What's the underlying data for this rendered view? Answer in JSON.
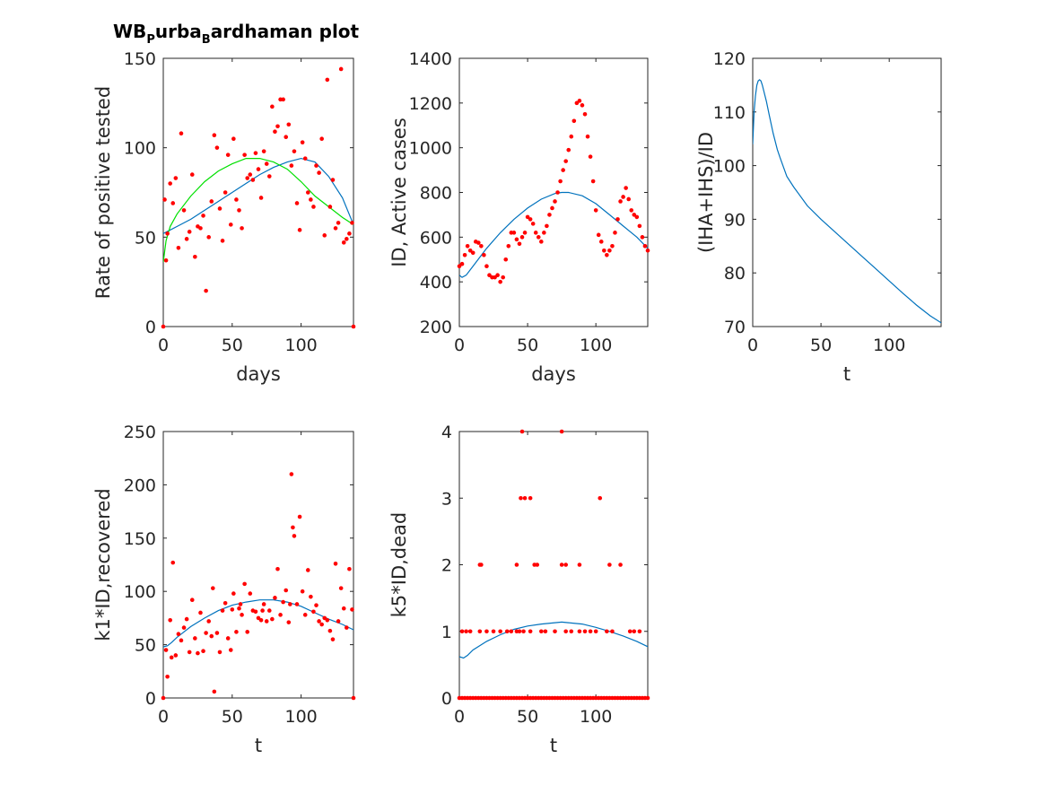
{
  "figure": {
    "title_main": "WB",
    "title_sub1": "P",
    "title_mid": "urba",
    "title_sub2": "B",
    "title_end": "ardhaman plot"
  },
  "colors": {
    "data": "#ff0000",
    "fit": "#0072bd",
    "fit2": "#00e000",
    "axes": "#262626"
  },
  "chart_data": [
    {
      "type": "scatter",
      "xlabel": "days",
      "ylabel": "Rate of positive tested",
      "xlim": [
        0,
        138
      ],
      "ylim": [
        0,
        150
      ],
      "xticks": [
        0,
        50,
        100
      ],
      "yticks": [
        0,
        50,
        100,
        150
      ],
      "x": [
        0,
        1,
        2,
        3,
        5,
        7,
        9,
        11,
        13,
        15,
        17,
        19,
        21,
        23,
        25,
        27,
        29,
        31,
        33,
        35,
        37,
        39,
        41,
        43,
        45,
        47,
        49,
        51,
        53,
        55,
        57,
        59,
        61,
        63,
        65,
        67,
        69,
        71,
        73,
        75,
        77,
        79,
        81,
        83,
        85,
        87,
        89,
        91,
        93,
        95,
        97,
        99,
        101,
        103,
        105,
        107,
        109,
        111,
        113,
        115,
        117,
        119,
        121,
        123,
        125,
        127,
        129,
        131,
        133,
        135,
        137,
        138
      ],
      "y": [
        0,
        71,
        37,
        52,
        80,
        69,
        83,
        44,
        108,
        65,
        49,
        53,
        85,
        39,
        56,
        55,
        62,
        20,
        50,
        70,
        107,
        100,
        66,
        48,
        75,
        96,
        57,
        105,
        71,
        65,
        55,
        96,
        83,
        85,
        82,
        97,
        88,
        72,
        98,
        91,
        84,
        123,
        109,
        112,
        127,
        127,
        106,
        113,
        90,
        98,
        69,
        54,
        103,
        94,
        75,
        71,
        67,
        90,
        86,
        105,
        51,
        138,
        67,
        82,
        55,
        58,
        144,
        47,
        49,
        52,
        58,
        0
      ],
      "series": [
        {
          "type": "line",
          "x": [
            0,
            10,
            20,
            30,
            40,
            50,
            60,
            70,
            80,
            90,
            100,
            110,
            120,
            130,
            138
          ],
          "y": [
            52,
            56,
            60,
            65,
            70,
            75,
            80,
            85,
            89,
            92,
            94,
            92,
            84,
            72,
            57
          ]
        },
        {
          "type": "line",
          "x": [
            0,
            2,
            5,
            10,
            20,
            30,
            40,
            50,
            60,
            70,
            80,
            90,
            100,
            110,
            120,
            130,
            138
          ],
          "y": [
            36,
            48,
            56,
            63,
            73,
            81,
            87,
            91,
            94,
            94,
            92,
            88,
            81,
            73,
            67,
            61,
            57
          ]
        }
      ]
    },
    {
      "type": "scatter",
      "xlabel": "days",
      "ylabel": "ID, Active cases",
      "xlim": [
        0,
        138
      ],
      "ylim": [
        200,
        1400
      ],
      "xticks": [
        0,
        50,
        100
      ],
      "yticks": [
        200,
        400,
        600,
        800,
        1000,
        1200,
        1400
      ],
      "x": [
        0,
        2,
        4,
        6,
        8,
        10,
        12,
        14,
        16,
        18,
        20,
        22,
        24,
        26,
        28,
        30,
        32,
        34,
        36,
        38,
        40,
        42,
        44,
        46,
        48,
        50,
        52,
        54,
        56,
        58,
        60,
        62,
        64,
        66,
        68,
        70,
        72,
        74,
        76,
        78,
        80,
        82,
        84,
        86,
        88,
        90,
        92,
        94,
        96,
        98,
        100,
        102,
        104,
        106,
        108,
        110,
        112,
        114,
        116,
        118,
        120,
        122,
        124,
        126,
        128,
        130,
        132,
        134,
        136,
        138
      ],
      "y": [
        470,
        480,
        520,
        560,
        540,
        530,
        580,
        575,
        560,
        520,
        470,
        430,
        420,
        420,
        430,
        400,
        420,
        500,
        560,
        620,
        620,
        590,
        570,
        600,
        620,
        690,
        680,
        660,
        620,
        600,
        580,
        620,
        650,
        700,
        730,
        760,
        800,
        850,
        900,
        940,
        990,
        1050,
        1120,
        1200,
        1210,
        1190,
        1150,
        1050,
        960,
        850,
        720,
        610,
        580,
        540,
        520,
        540,
        560,
        620,
        680,
        760,
        780,
        820,
        770,
        720,
        700,
        690,
        650,
        600,
        560,
        540
      ],
      "series": [
        {
          "type": "line",
          "x": [
            0,
            2,
            5,
            10,
            20,
            30,
            40,
            50,
            60,
            70,
            75,
            80,
            90,
            100,
            110,
            120,
            130,
            138
          ],
          "y": [
            430,
            420,
            430,
            470,
            550,
            620,
            680,
            730,
            770,
            795,
            800,
            800,
            785,
            750,
            700,
            650,
            600,
            550
          ]
        }
      ]
    },
    {
      "type": "line",
      "xlabel": "t",
      "ylabel": "(IHA+IHS)/ID",
      "xlim": [
        0,
        138
      ],
      "ylim": [
        70,
        120
      ],
      "xticks": [
        0,
        50,
        100
      ],
      "yticks": [
        70,
        80,
        90,
        100,
        110,
        120
      ],
      "series": [
        {
          "x": [
            0,
            1,
            2,
            3,
            4,
            5,
            6,
            7,
            8,
            10,
            12,
            15,
            18,
            20,
            25,
            30,
            40,
            50,
            60,
            70,
            80,
            90,
            100,
            110,
            120,
            130,
            138
          ],
          "y": [
            104,
            110,
            113,
            115,
            115.8,
            116,
            115.8,
            115,
            114,
            112,
            109.5,
            106,
            103,
            101.5,
            98,
            96,
            92.5,
            90,
            87.7,
            85.4,
            83.1,
            80.8,
            78.5,
            76.2,
            74,
            72,
            70.7
          ]
        }
      ]
    },
    {
      "type": "scatter",
      "xlabel": "t",
      "ylabel": "k1*ID,recovered",
      "xlim": [
        0,
        138
      ],
      "ylim": [
        0,
        250
      ],
      "xticks": [
        0,
        50,
        100
      ],
      "yticks": [
        0,
        50,
        100,
        150,
        200,
        250
      ],
      "x": [
        0,
        2,
        3,
        5,
        6,
        7,
        9,
        11,
        13,
        15,
        17,
        19,
        21,
        23,
        25,
        27,
        29,
        31,
        33,
        35,
        36,
        37,
        39,
        41,
        43,
        45,
        47,
        49,
        50,
        51,
        53,
        55,
        56,
        57,
        59,
        61,
        63,
        65,
        67,
        69,
        71,
        72,
        73,
        75,
        77,
        79,
        81,
        83,
        85,
        87,
        89,
        91,
        92,
        93,
        94,
        95,
        97,
        99,
        101,
        103,
        105,
        107,
        109,
        111,
        113,
        115,
        117,
        119,
        121,
        123,
        125,
        127,
        129,
        131,
        133,
        135,
        137,
        138
      ],
      "y": [
        0,
        45,
        20,
        73,
        38,
        127,
        40,
        60,
        54,
        66,
        74,
        43,
        92,
        56,
        42,
        80,
        44,
        61,
        72,
        58,
        103,
        6,
        61,
        43,
        82,
        89,
        56,
        45,
        83,
        98,
        62,
        84,
        88,
        78,
        107,
        62,
        98,
        82,
        81,
        75,
        73,
        82,
        88,
        72,
        82,
        74,
        94,
        121,
        78,
        90,
        101,
        71,
        88,
        210,
        160,
        152,
        88,
        170,
        100,
        78,
        120,
        95,
        81,
        87,
        72,
        69,
        75,
        73,
        63,
        55,
        126,
        72,
        103,
        84,
        66,
        121,
        83,
        0
      ],
      "series": [
        {
          "type": "line",
          "x": [
            0,
            3,
            6,
            10,
            20,
            30,
            40,
            50,
            60,
            70,
            75,
            80,
            90,
            100,
            110,
            120,
            130,
            138
          ],
          "y": [
            48,
            49,
            52,
            57,
            67,
            75,
            82,
            87,
            90,
            92,
            92,
            92,
            90,
            86,
            80,
            74,
            69,
            64
          ]
        }
      ]
    },
    {
      "type": "scatter",
      "xlabel": "t",
      "ylabel": "k5*ID,dead",
      "xlim": [
        0,
        138
      ],
      "ylim": [
        0,
        4
      ],
      "xticks": [
        0,
        50,
        100
      ],
      "yticks": [
        0,
        1,
        2,
        3,
        4
      ],
      "x": [
        0,
        2,
        4,
        6,
        8,
        10,
        12,
        14,
        16,
        18,
        20,
        22,
        24,
        26,
        28,
        30,
        32,
        34,
        36,
        38,
        40,
        42,
        44,
        46,
        48,
        50,
        52,
        54,
        56,
        58,
        60,
        62,
        64,
        66,
        68,
        70,
        72,
        74,
        76,
        78,
        80,
        82,
        84,
        86,
        88,
        90,
        92,
        94,
        96,
        98,
        100,
        102,
        104,
        106,
        108,
        110,
        112,
        114,
        116,
        118,
        120,
        122,
        124,
        126,
        128,
        130,
        132,
        134,
        136,
        138,
        2,
        5,
        8,
        15,
        20,
        25,
        30,
        35,
        38,
        42,
        44,
        47,
        52,
        60,
        63,
        70,
        78,
        82,
        88,
        92,
        96,
        100,
        108,
        112,
        125,
        128,
        132,
        15,
        16,
        42,
        55,
        57,
        75,
        78,
        88,
        110,
        118,
        45,
        48,
        52,
        103,
        46,
        75
      ],
      "y": [
        0,
        0,
        0,
        0,
        0,
        0,
        0,
        0,
        0,
        0,
        0,
        0,
        0,
        0,
        0,
        0,
        0,
        0,
        0,
        0,
        0,
        0,
        0,
        0,
        0,
        0,
        0,
        0,
        0,
        0,
        0,
        0,
        0,
        0,
        0,
        0,
        0,
        0,
        0,
        0,
        0,
        0,
        0,
        0,
        0,
        0,
        0,
        0,
        0,
        0,
        0,
        0,
        0,
        0,
        0,
        0,
        0,
        0,
        0,
        0,
        0,
        0,
        0,
        0,
        0,
        0,
        0,
        0,
        0,
        0,
        1,
        1,
        1,
        1,
        1,
        1,
        1,
        1,
        1,
        1,
        1,
        1,
        1,
        1,
        1,
        1,
        1,
        1,
        1,
        1,
        1,
        1,
        1,
        1,
        1,
        1,
        1,
        2,
        2,
        2,
        2,
        2,
        2,
        2,
        2,
        2,
        2,
        3,
        3,
        3,
        3,
        4,
        4
      ],
      "series": [
        {
          "type": "line",
          "x": [
            0,
            3,
            6,
            10,
            20,
            30,
            40,
            50,
            60,
            70,
            75,
            80,
            90,
            100,
            110,
            120,
            130,
            138
          ],
          "y": [
            0.62,
            0.6,
            0.64,
            0.72,
            0.85,
            0.95,
            1.03,
            1.08,
            1.11,
            1.13,
            1.14,
            1.13,
            1.11,
            1.06,
            1.0,
            0.93,
            0.85,
            0.77
          ]
        }
      ]
    }
  ]
}
